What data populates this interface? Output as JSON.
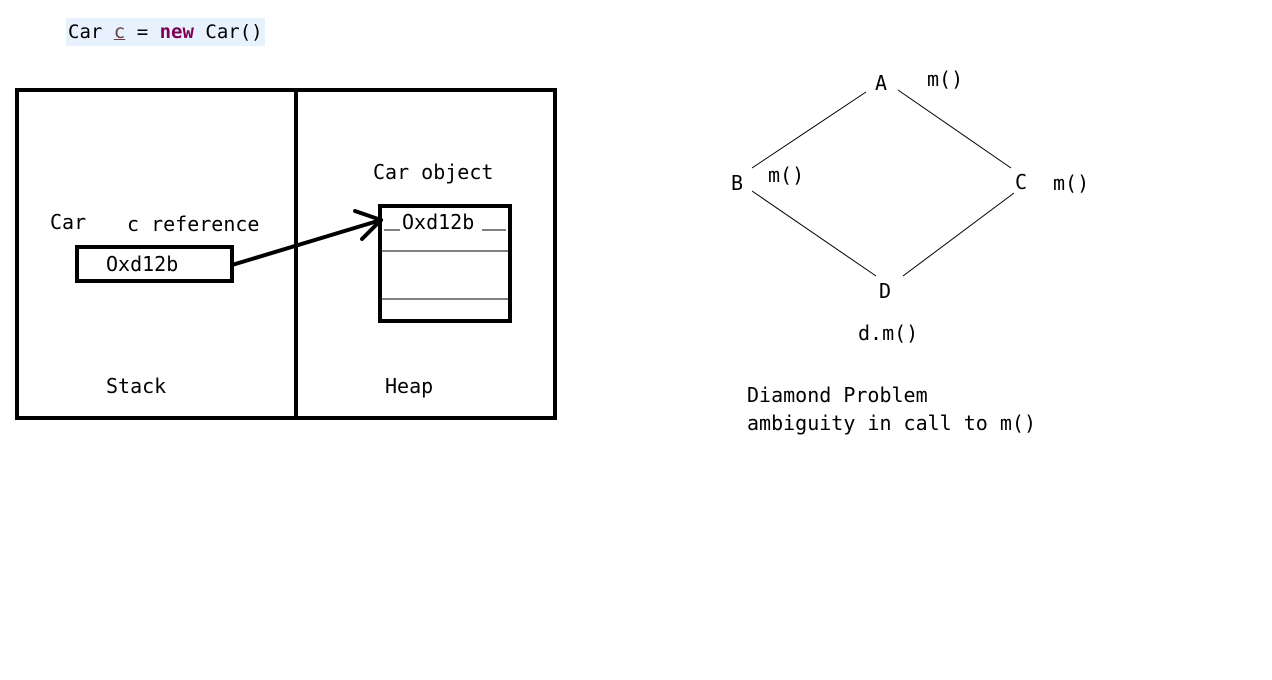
{
  "code": {
    "type_name": "Car",
    "var_name": "c",
    "equals": "=",
    "keyword": "new",
    "constructor_call": "Car()"
  },
  "memory": {
    "stack": {
      "label": "Stack",
      "class_label": "Car",
      "ref_label": "c reference",
      "ref_value": "Oxd12b"
    },
    "heap": {
      "label": "Heap",
      "object_label": "Car object",
      "object_address": "Oxd12b"
    }
  },
  "diamond": {
    "nodes": {
      "a": "A",
      "b": "B",
      "c": "C",
      "d": "D"
    },
    "method_a": "m()",
    "method_b": "m()",
    "method_c": "m()",
    "call": "d.m()",
    "caption_title": "Diamond Problem",
    "caption_desc": "ambiguity in call to m()"
  }
}
